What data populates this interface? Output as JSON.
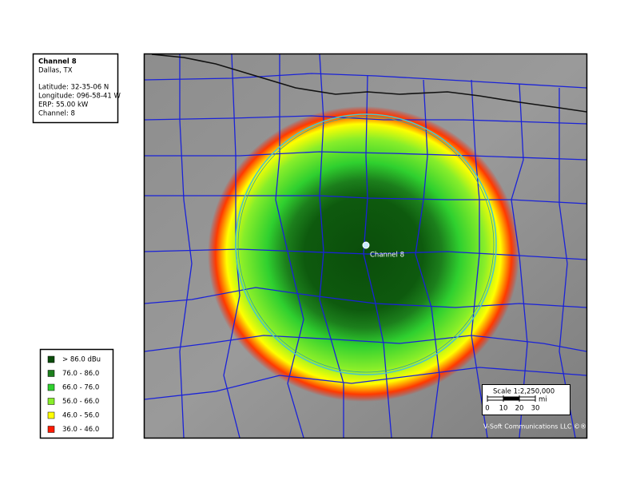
{
  "info": {
    "title": "Channel 8",
    "city": "Dallas, TX",
    "lines": [
      "Latitude: 32-35-06 N",
      "Longitude: 096-58-41 W",
      "ERP: 55.00 kW",
      "Channel: 8"
    ]
  },
  "legend": [
    {
      "label": "> 86.0 dBu",
      "color": "#0b4d0b"
    },
    {
      "label": "76.0 - 86.0",
      "color": "#1c7f1c"
    },
    {
      "label": "66.0 - 76.0",
      "color": "#2fd02f"
    },
    {
      "label": "56.0 - 66.0",
      "color": "#88ee2a"
    },
    {
      "label": "46.0 - 56.0",
      "color": "#ffff00"
    },
    {
      "label": "36.0 - 46.0",
      "color": "#ff1a00"
    }
  ],
  "map": {
    "station_label": "Channel 8",
    "credit": "V-Soft Communications LLC ©®"
  },
  "scale": {
    "title": "Scale 1:2,250,000",
    "unit": "mi",
    "ticks": [
      0,
      10,
      20,
      30
    ]
  }
}
